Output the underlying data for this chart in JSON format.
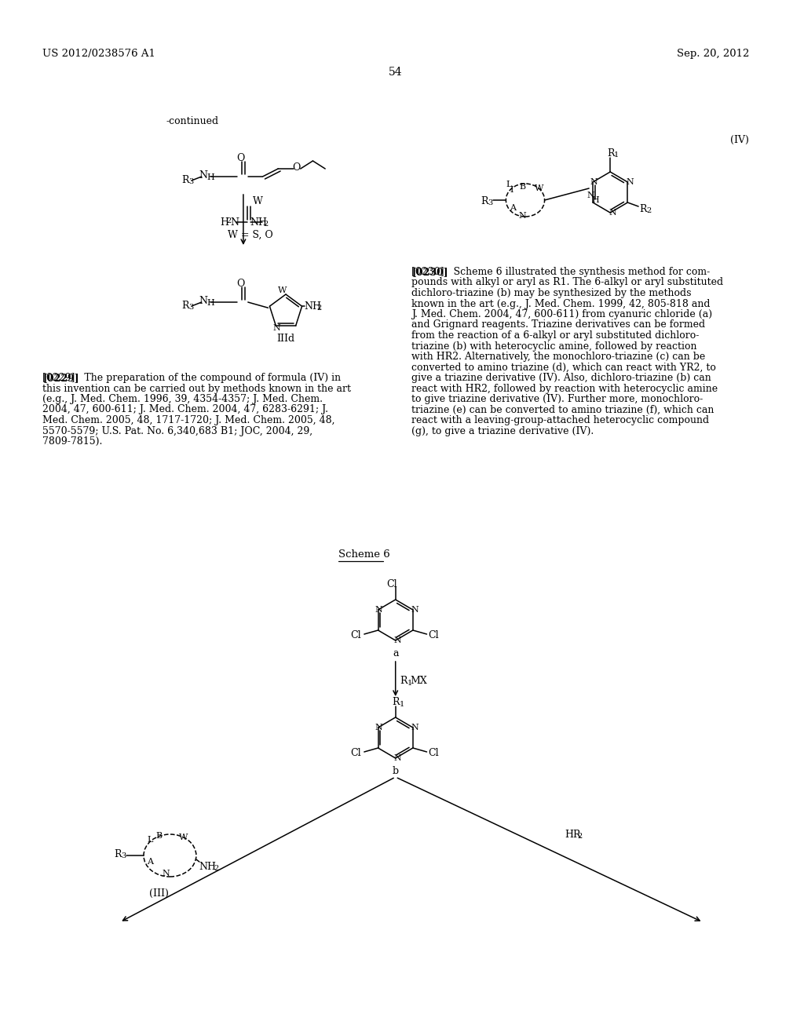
{
  "background_color": "#ffffff",
  "page_number": "54",
  "header_left": "US 2012/0238576 A1",
  "header_right": "Sep. 20, 2012",
  "continued_label": "-continued",
  "formula_iv_label": "(IV)",
  "scheme6_label": "Scheme 6",
  "p229_lines": [
    "[0229]   The preparation of the compound of formula (IV) in",
    "this invention can be carried out by methods known in the art",
    "(e.g., J. Med. Chem. 1996, 39, 4354-4357; J. Med. Chem.",
    "2004, 47, 600-611; J. Med. Chem. 2004, 47, 6283-6291; J.",
    "Med. Chem. 2005, 48, 1717-1720; J. Med. Chem. 2005, 48,",
    "5570-5579; U.S. Pat. No. 6,340,683 B1; JOC, 2004, 29,",
    "7809-7815)."
  ],
  "p230_lines": [
    "[0230]   Scheme 6 illustrated the synthesis method for com-",
    "pounds with alkyl or aryl as R1. The 6-alkyl or aryl substituted",
    "dichloro-triazine (b) may be synthesized by the methods",
    "known in the art (e.g., J. Med. Chem. 1999, 42, 805-818 and",
    "J. Med. Chem. 2004, 47, 600-611) from cyanuric chloride (a)",
    "and Grignard reagents. Triazine derivatives can be formed",
    "from the reaction of a 6-alkyl or aryl substituted dichloro-",
    "triazine (b) with heterocyclic amine, followed by reaction",
    "with HR2. Alternatively, the monochloro-triazine (c) can be",
    "converted to amino triazine (d), which can react with YR2, to",
    "give a triazine derivative (IV). Also, dichloro-triazine (b) can",
    "react with HR2, followed by reaction with heterocyclic amine",
    "to give triazine derivative (IV). Further more, monochloro-",
    "triazine (e) can be converted to amino triazine (f), which can",
    "react with a leaving-group-attached heterocyclic compound",
    "(g), to give a triazine derivative (IV)."
  ]
}
